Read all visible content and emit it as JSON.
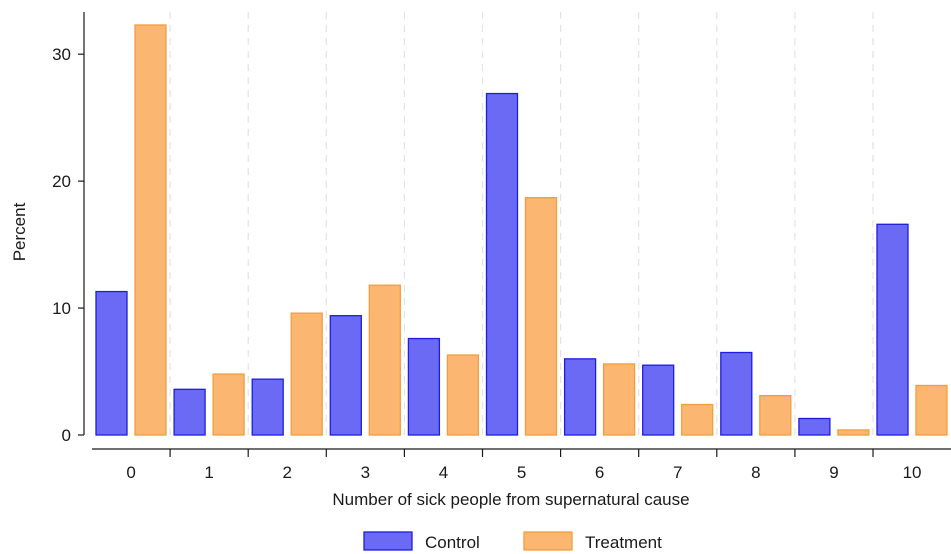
{
  "chart_data": {
    "type": "bar",
    "categories": [
      "0",
      "1",
      "2",
      "3",
      "4",
      "5",
      "6",
      "7",
      "8",
      "9",
      "10"
    ],
    "series": [
      {
        "name": "Control",
        "color": "#6a6af4",
        "edge": "#1e1ee0",
        "values": [
          11.3,
          3.6,
          4.4,
          9.4,
          7.6,
          26.9,
          6.0,
          5.5,
          6.5,
          1.3,
          16.6
        ]
      },
      {
        "name": "Treatment",
        "color": "#fbb671",
        "edge": "#f29e3f",
        "values": [
          32.3,
          4.8,
          9.6,
          11.8,
          6.3,
          18.7,
          5.6,
          2.4,
          3.1,
          0.4,
          3.9
        ]
      }
    ],
    "title": "",
    "xlabel": "Number of sick people from supernatural cause",
    "ylabel": "Percent",
    "ylim": [
      0,
      32.3
    ],
    "yticks": [
      "0",
      "10",
      "20",
      "30"
    ],
    "grid": "vertical-dashed",
    "legend": "bottom"
  }
}
